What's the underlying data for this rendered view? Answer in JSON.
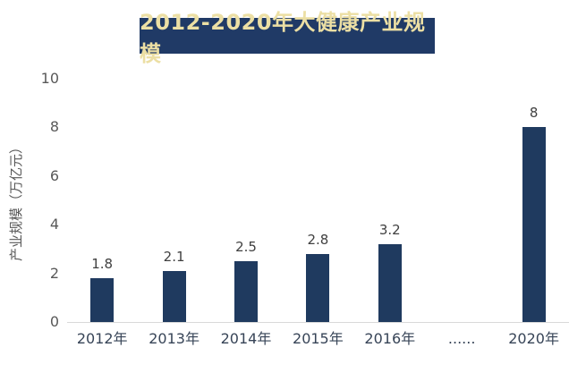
{
  "chart_data": {
    "type": "bar",
    "title": "2012-2020年大健康产业规模",
    "ylabel": "产业规模（万亿元）",
    "xlabel": "",
    "categories": [
      "2012年",
      "2013年",
      "2014年",
      "2015年",
      "2016年",
      "......",
      "2020年"
    ],
    "values": [
      1.8,
      2.1,
      2.5,
      2.8,
      3.2,
      null,
      8
    ],
    "data_labels": [
      "1.8",
      "2.1",
      "2.5",
      "2.8",
      "3.2",
      "",
      "8"
    ],
    "yticks": [
      0,
      2,
      4,
      6,
      8,
      10
    ],
    "ylim": [
      0,
      10
    ],
    "grid": false,
    "legend_position": "none",
    "colors": {
      "bar": "#1f3a5f",
      "title_bg": "#203a66",
      "title_text": "#ecdfa4",
      "data_label": "#404040",
      "x_tick": "#374457",
      "y_tick": "#595959",
      "axis_line": "#d9d9d9",
      "background": "#ffffff"
    }
  }
}
